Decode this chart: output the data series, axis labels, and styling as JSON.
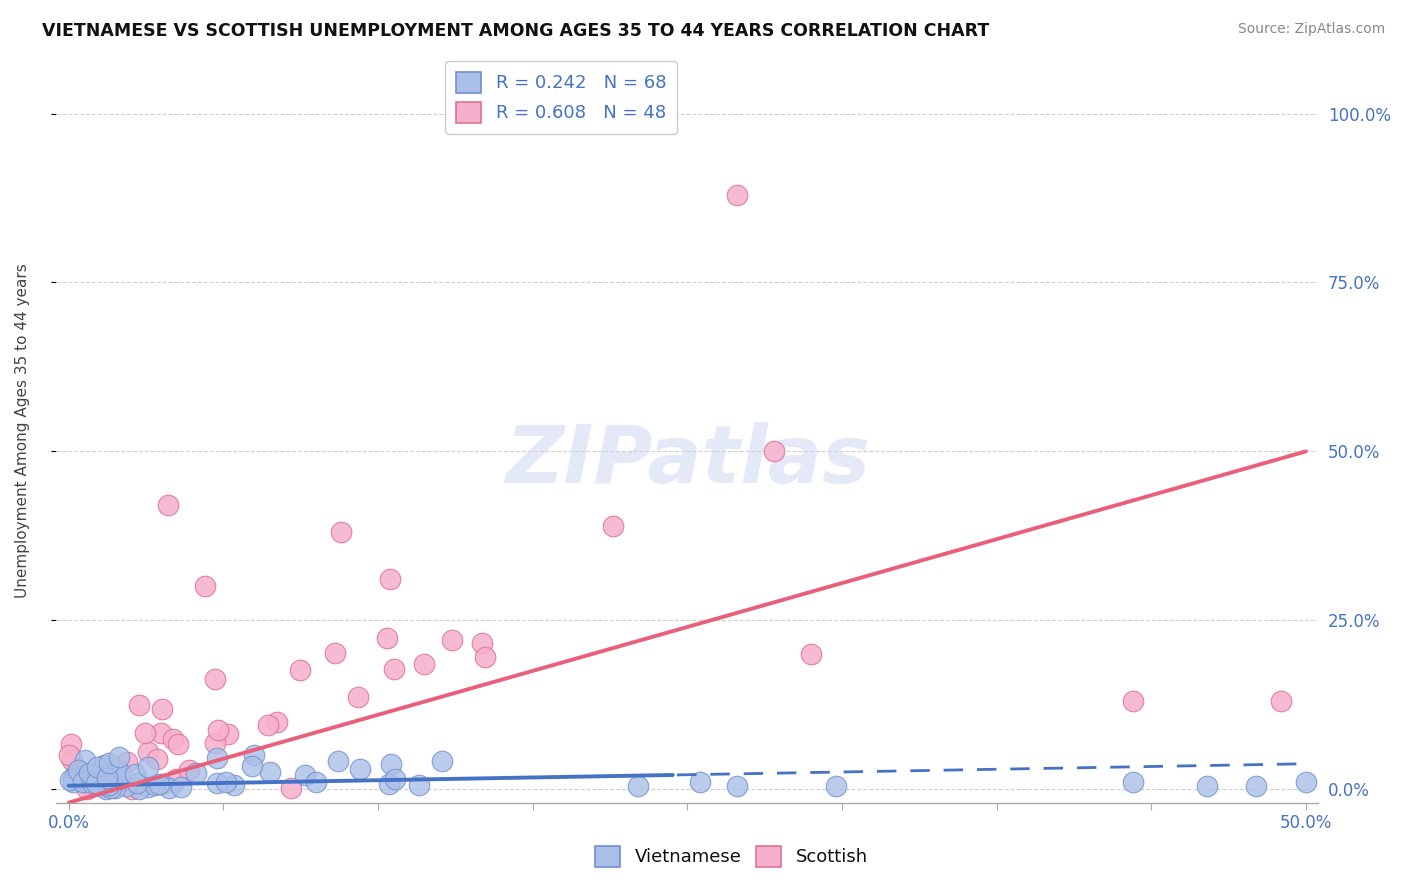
{
  "title": "VIETNAMESE VS SCOTTISH UNEMPLOYMENT AMONG AGES 35 TO 44 YEARS CORRELATION CHART",
  "source": "Source: ZipAtlas.com",
  "ylabel": "Unemployment Among Ages 35 to 44 years",
  "xlim": [
    -0.005,
    0.505
  ],
  "ylim": [
    -0.02,
    1.08
  ],
  "xtick_positions": [
    0.0,
    0.0625,
    0.125,
    0.1875,
    0.25,
    0.3125,
    0.375,
    0.4375,
    0.5
  ],
  "xtick_labels_sparse": {
    "0": "0.0%",
    "8": "50.0%"
  },
  "ytick_positions": [
    0.0,
    0.25,
    0.5,
    0.75,
    1.0
  ],
  "ytick_labels": [
    "0.0%",
    "25.0%",
    "50.0%",
    "75.0%",
    "100.0%"
  ],
  "background_color": "#ffffff",
  "grid_color": "#d0d0d0",
  "watermark": "ZIPatlas",
  "viet_color": "#aabfe8",
  "viet_edge": "#7090d0",
  "scot_color": "#f5b0cc",
  "scot_edge": "#e07098",
  "viet_line_color": "#4472c4",
  "scot_line_color": "#e8607a",
  "legend_entries": [
    {
      "label": "R = 0.242   N = 68",
      "color": "#aabfe8",
      "edge": "#7090d0"
    },
    {
      "label": "R = 0.608   N = 48",
      "color": "#f5b0cc",
      "edge": "#e07098"
    }
  ],
  "legend_labels": [
    "Vietnamese",
    "Scottish"
  ],
  "viet_trend_solid_end": 0.245,
  "scot_trend_intercept": -0.02,
  "scot_trend_slope": 1.04,
  "viet_trend_intercept": 0.005,
  "viet_trend_slope": 0.065
}
